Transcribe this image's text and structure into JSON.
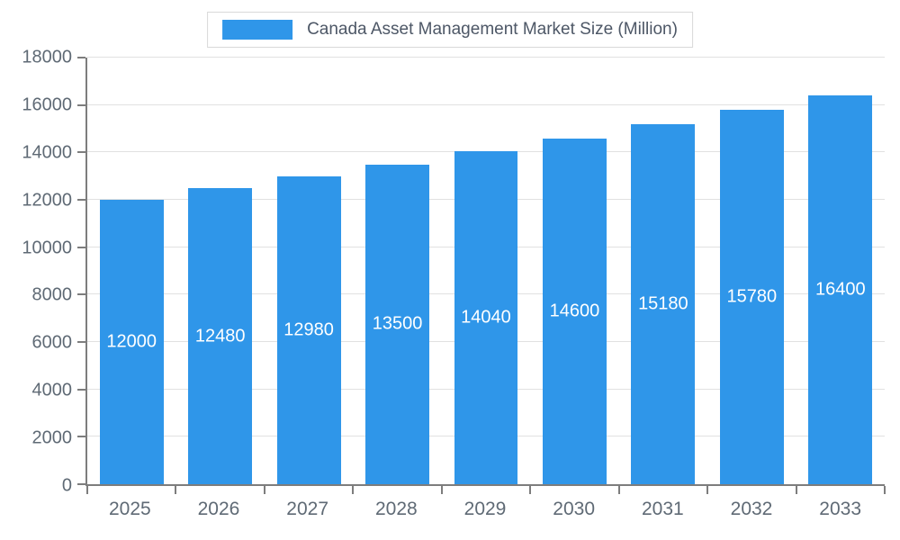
{
  "legend": {
    "swatch_color": "#2f96e9"
  },
  "chart_data": {
    "type": "bar",
    "title": "Canada Asset Management Market Size (Million)",
    "categories": [
      "2025",
      "2026",
      "2027",
      "2028",
      "2029",
      "2030",
      "2031",
      "2032",
      "2033"
    ],
    "values": [
      12000,
      12480,
      12980,
      13500,
      14040,
      14600,
      15180,
      15780,
      16400
    ],
    "xlabel": "",
    "ylabel": "",
    "ylim": [
      0,
      18000
    ],
    "yticks": [
      0,
      2000,
      4000,
      6000,
      8000,
      10000,
      12000,
      14000,
      16000,
      18000
    ],
    "bar_color": "#2f96e9",
    "value_label_color": "#ffffff",
    "grid": true,
    "legend_position": "top"
  }
}
